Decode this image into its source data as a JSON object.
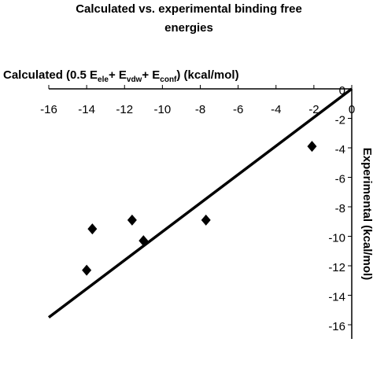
{
  "chart_data": {
    "type": "scatter",
    "title": [
      "Calculated vs. experimental binding free",
      "energies"
    ],
    "x_label_parts": [
      "Calculated (0.5  E",
      "ele",
      "+  E",
      "vdw",
      "+  E",
      "conf",
      ") (kcal/mol)"
    ],
    "y_label": "Experimental (kcal/mol)",
    "xlim": [
      -16,
      0
    ],
    "ylim": [
      -16,
      0
    ],
    "xticks": [
      -16,
      -14,
      -12,
      -10,
      -8,
      -6,
      -4,
      -2,
      0
    ],
    "yticks": [
      0,
      -2,
      -4,
      -6,
      -8,
      -10,
      -12,
      -14,
      -16
    ],
    "series": [
      {
        "type": "scatter",
        "color": "#000000",
        "x": [
          -14.0,
          -13.7,
          -11.6,
          -11.0,
          -7.7,
          -2.1
        ],
        "values": [
          -12.3,
          -9.5,
          -8.9,
          -10.3,
          -8.9,
          -3.9
        ]
      },
      {
        "type": "line",
        "color": "#000000",
        "x": [
          -16,
          0
        ],
        "values": [
          -15.5,
          0
        ]
      }
    ]
  }
}
